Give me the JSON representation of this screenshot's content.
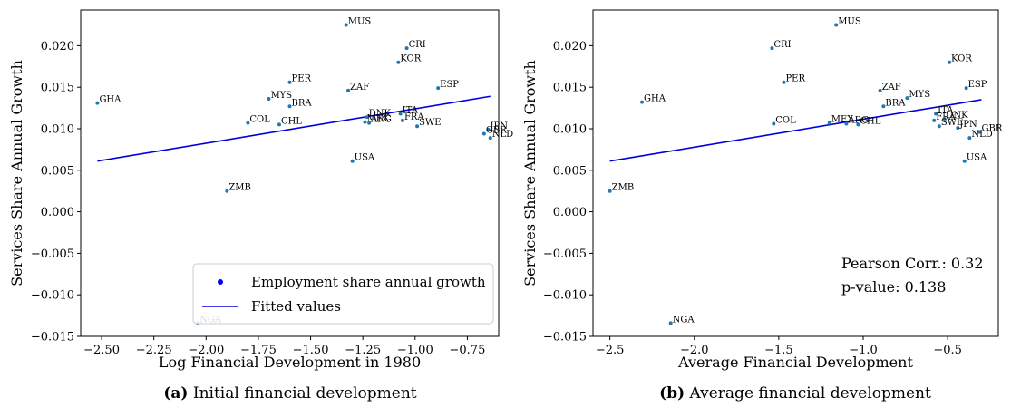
{
  "chart_data": [
    {
      "type": "scatter",
      "caption_tag": "(a)",
      "caption_text": "Initial financial development",
      "xlabel": "Log Financial Development in 1980",
      "ylabel": "Services Share Annual Growth",
      "xlim": [
        -2.6,
        -0.6
      ],
      "ylim": [
        -0.015,
        0.0243
      ],
      "xticks": [
        -2.5,
        -2.25,
        -2.0,
        -1.75,
        -1.5,
        -1.25,
        -1.0,
        -0.75
      ],
      "xtick_labels": [
        "−2.50",
        "−2.25",
        "−2.00",
        "−1.75",
        "−1.50",
        "−1.25",
        "−1.00",
        "−0.75"
      ],
      "yticks": [
        -0.015,
        -0.01,
        -0.005,
        0.0,
        0.005,
        0.01,
        0.015,
        0.02
      ],
      "ytick_labels": [
        "−0.015",
        "−0.010",
        "−0.005",
        "0.000",
        "0.005",
        "0.010",
        "0.015",
        "0.020"
      ],
      "legend": {
        "position": "lower-right",
        "entries": [
          {
            "label": "Employment share annual growth",
            "kind": "dot"
          },
          {
            "label": "Fitted values",
            "kind": "line"
          }
        ]
      },
      "fit": {
        "x": [
          -2.52,
          -0.64
        ],
        "y": [
          0.0061,
          0.0139
        ]
      },
      "points": [
        {
          "label": "MUS",
          "x": -1.33,
          "y": 0.0225
        },
        {
          "label": "CRI",
          "x": -1.04,
          "y": 0.0197
        },
        {
          "label": "KOR",
          "x": -1.08,
          "y": 0.018
        },
        {
          "label": "PER",
          "x": -1.6,
          "y": 0.0156
        },
        {
          "label": "ZAF",
          "x": -1.32,
          "y": 0.0146
        },
        {
          "label": "ESP",
          "x": -0.89,
          "y": 0.0149
        },
        {
          "label": "GHA",
          "x": -2.52,
          "y": 0.0131
        },
        {
          "label": "MYS",
          "x": -1.7,
          "y": 0.0136
        },
        {
          "label": "BRA",
          "x": -1.6,
          "y": 0.0127
        },
        {
          "label": "COL",
          "x": -1.8,
          "y": 0.0107
        },
        {
          "label": "CHL",
          "x": -1.65,
          "y": 0.0105
        },
        {
          "label": "DNK",
          "x": -1.23,
          "y": 0.0114
        },
        {
          "label": "MEX",
          "x": -1.24,
          "y": 0.0108
        },
        {
          "label": "ARG",
          "x": -1.22,
          "y": 0.0107
        },
        {
          "label": "ITA",
          "x": -1.07,
          "y": 0.0118
        },
        {
          "label": "FRA",
          "x": -1.06,
          "y": 0.011
        },
        {
          "label": "SWE",
          "x": -0.99,
          "y": 0.0103
        },
        {
          "label": "JPN",
          "x": -0.65,
          "y": 0.0099
        },
        {
          "label": "GBR",
          "x": -0.67,
          "y": 0.0094
        },
        {
          "label": "NLD",
          "x": -0.64,
          "y": 0.0089
        },
        {
          "label": "USA",
          "x": -1.3,
          "y": 0.0061
        },
        {
          "label": "ZMB",
          "x": -1.9,
          "y": 0.0025
        },
        {
          "label": "NGA",
          "x": -2.04,
          "y": -0.0134
        }
      ]
    },
    {
      "type": "scatter",
      "caption_tag": "(b)",
      "caption_text": "Average financial development",
      "xlabel": "Average Financial Development",
      "ylabel": "Services Share Annual Growth",
      "xlim": [
        -2.6,
        -0.2
      ],
      "ylim": [
        -0.015,
        0.0243
      ],
      "xticks": [
        -2.5,
        -2.0,
        -1.5,
        -1.0,
        -0.5
      ],
      "xtick_labels": [
        "−2.5",
        "−2.0",
        "−1.5",
        "−1.0",
        "−0.5"
      ],
      "yticks": [
        -0.015,
        -0.01,
        -0.005,
        0.0,
        0.005,
        0.01,
        0.015,
        0.02
      ],
      "ytick_labels": [
        "−0.015",
        "−0.010",
        "−0.005",
        "0.000",
        "0.005",
        "0.010",
        "0.015",
        "0.020"
      ],
      "annotations": [
        "Pearson Corr.: 0.32",
        "p-value: 0.138"
      ],
      "fit": {
        "x": [
          -2.5,
          -0.3
        ],
        "y": [
          0.0061,
          0.0135
        ]
      },
      "points": [
        {
          "label": "MUS",
          "x": -1.16,
          "y": 0.0225
        },
        {
          "label": "CRI",
          "x": -1.54,
          "y": 0.0197
        },
        {
          "label": "KOR",
          "x": -0.49,
          "y": 0.018
        },
        {
          "label": "PER",
          "x": -1.47,
          "y": 0.0156
        },
        {
          "label": "ZAF",
          "x": -0.9,
          "y": 0.0146
        },
        {
          "label": "ESP",
          "x": -0.39,
          "y": 0.0149
        },
        {
          "label": "GHA",
          "x": -2.31,
          "y": 0.0132
        },
        {
          "label": "MYS",
          "x": -0.74,
          "y": 0.0137
        },
        {
          "label": "BRA",
          "x": -0.88,
          "y": 0.0127
        },
        {
          "label": "COL",
          "x": -1.53,
          "y": 0.0106
        },
        {
          "label": "MEX",
          "x": -1.2,
          "y": 0.0107
        },
        {
          "label": "ARG",
          "x": -1.1,
          "y": 0.0106
        },
        {
          "label": "CHL",
          "x": -1.03,
          "y": 0.0105
        },
        {
          "label": "ITA",
          "x": -0.57,
          "y": 0.0118
        },
        {
          "label": "FRA",
          "x": -0.58,
          "y": 0.011
        },
        {
          "label": "DNK",
          "x": -0.52,
          "y": 0.0112
        },
        {
          "label": "SWE",
          "x": -0.55,
          "y": 0.0103
        },
        {
          "label": "JPN",
          "x": -0.44,
          "y": 0.0101
        },
        {
          "label": "GBR",
          "x": -0.31,
          "y": 0.0096
        },
        {
          "label": "NLD",
          "x": -0.37,
          "y": 0.0089
        },
        {
          "label": "USA",
          "x": -0.4,
          "y": 0.0061
        },
        {
          "label": "ZMB",
          "x": -2.5,
          "y": 0.0025
        },
        {
          "label": "NGA",
          "x": -2.14,
          "y": -0.0134
        }
      ]
    }
  ],
  "colors": {
    "point": "#1f77b4",
    "fit_line": "#0000dd",
    "legend_dot": "#0000ff",
    "axis": "#000000"
  }
}
